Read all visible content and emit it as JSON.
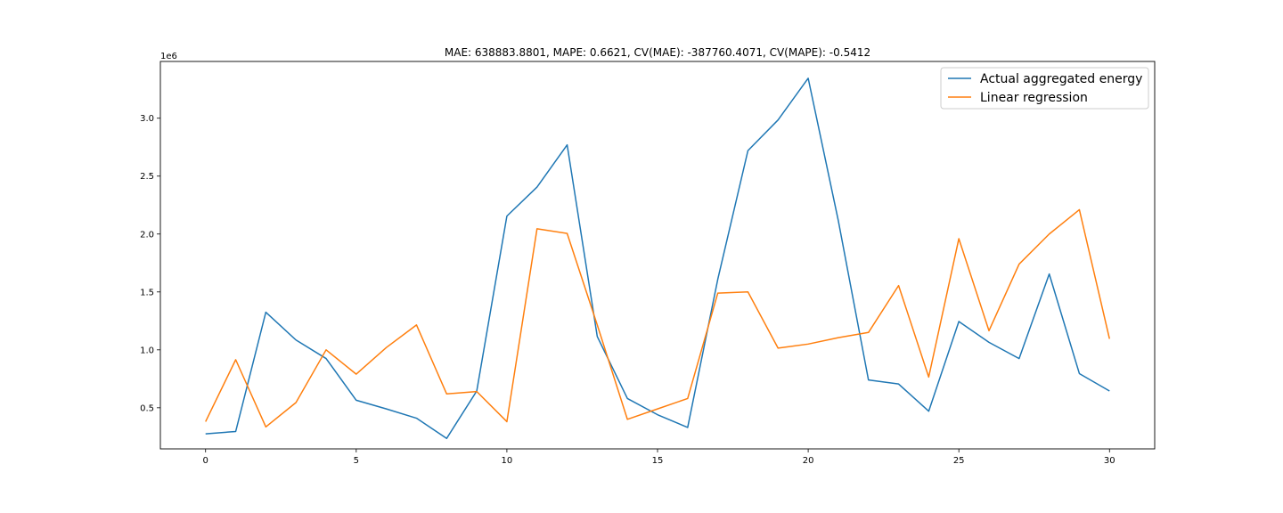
{
  "chart_data": {
    "type": "line",
    "title": "MAE: 638883.8801, MAPE: 0.6621, CV(MAE): -387760.4071, CV(MAPE): -0.5412",
    "xlabel": "",
    "ylabel": "",
    "offset_label": "1e6",
    "x": [
      0,
      1,
      2,
      3,
      4,
      5,
      6,
      7,
      8,
      9,
      10,
      11,
      12,
      13,
      14,
      15,
      16,
      17,
      18,
      19,
      20,
      21,
      22,
      23,
      24,
      25,
      26,
      27,
      28,
      29,
      30
    ],
    "xlim": [
      -1.5,
      31.5
    ],
    "ylim": [
      0.145,
      3.49
    ],
    "x_ticks": [
      0,
      5,
      10,
      15,
      20,
      25,
      30
    ],
    "x_tick_labels": [
      "0",
      "5",
      "10",
      "15",
      "20",
      "25",
      "30"
    ],
    "y_ticks": [
      0.5,
      1.0,
      1.5,
      2.0,
      2.5,
      3.0
    ],
    "y_tick_labels": [
      "0.5",
      "1.0",
      "1.5",
      "2.0",
      "2.5",
      "3.0"
    ],
    "grid": false,
    "legend_position": "top-right",
    "series": [
      {
        "name": "Actual aggregated energy",
        "color": "#1f77b4",
        "values": [
          0.275,
          0.295,
          1.325,
          1.085,
          0.925,
          0.565,
          0.49,
          0.41,
          0.235,
          0.645,
          2.155,
          2.405,
          2.77,
          1.115,
          0.58,
          0.44,
          0.33,
          1.61,
          2.72,
          2.985,
          3.345,
          2.115,
          0.74,
          0.705,
          0.47,
          1.245,
          1.065,
          0.925,
          1.655,
          0.795,
          0.645
        ]
      },
      {
        "name": "Linear regression",
        "color": "#ff7f0e",
        "values": [
          0.38,
          0.915,
          0.335,
          0.545,
          1.0,
          0.79,
          1.02,
          1.215,
          0.62,
          0.64,
          0.38,
          2.045,
          2.005,
          1.215,
          0.4,
          0.49,
          0.58,
          1.49,
          1.5,
          1.015,
          1.05,
          1.105,
          1.15,
          1.555,
          0.765,
          1.96,
          1.165,
          1.74,
          2.0,
          2.21,
          1.095
        ]
      }
    ]
  }
}
